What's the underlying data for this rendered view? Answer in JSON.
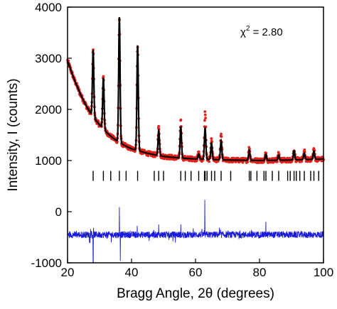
{
  "chart_data": {
    "type": "scatter",
    "title": "",
    "xlabel": "Bragg Angle, 2θ (degrees)",
    "ylabel": "Intensity, I (counts)",
    "xlim": [
      20,
      100
    ],
    "ylim": [
      -1000,
      4000
    ],
    "x_ticks": [
      20,
      40,
      60,
      80,
      100
    ],
    "y_ticks": [
      -1000,
      0,
      1000,
      2000,
      3000,
      4000
    ],
    "grid": false,
    "legend": "none",
    "annotation": {
      "text": "χ² = 2.80",
      "chi_symbol": "χ",
      "superscript": "2",
      "value_text": " = 2.80"
    },
    "background_curve": [
      [
        20,
        2950
      ],
      [
        22,
        2600
      ],
      [
        24,
        2300
      ],
      [
        26,
        2050
      ],
      [
        28,
        1850
      ],
      [
        30,
        1700
      ],
      [
        32,
        1560
      ],
      [
        34,
        1450
      ],
      [
        36,
        1360
      ],
      [
        38,
        1290
      ],
      [
        40,
        1230
      ],
      [
        45,
        1140
      ],
      [
        50,
        1080
      ],
      [
        55,
        1050
      ],
      [
        60,
        1030
      ],
      [
        65,
        1020
      ],
      [
        70,
        1010
      ],
      [
        80,
        1000
      ],
      [
        90,
        1010
      ],
      [
        100,
        1030
      ]
    ],
    "peaks": [
      {
        "x": 28.0,
        "height": 1310,
        "obs_extra": 0
      },
      {
        "x": 31.2,
        "height": 1000,
        "obs_extra": 40
      },
      {
        "x": 36.2,
        "height": 2450,
        "obs_extra": 0
      },
      {
        "x": 41.9,
        "height": 2050,
        "obs_extra": 0
      },
      {
        "x": 48.5,
        "height": 500,
        "obs_extra": 60
      },
      {
        "x": 55.4,
        "height": 620,
        "obs_extra": 120
      },
      {
        "x": 61.0,
        "height": 100,
        "obs_extra": 20
      },
      {
        "x": 63.0,
        "height": 620,
        "obs_extra": 300
      },
      {
        "x": 65.0,
        "height": 320,
        "obs_extra": 60
      },
      {
        "x": 68.0,
        "height": 380,
        "obs_extra": 90
      },
      {
        "x": 76.8,
        "height": 200,
        "obs_extra": 40
      },
      {
        "x": 82.0,
        "height": 120,
        "obs_extra": 30
      },
      {
        "x": 86.0,
        "height": 100,
        "obs_extra": 20
      },
      {
        "x": 90.8,
        "height": 180,
        "obs_extra": 30
      },
      {
        "x": 94.0,
        "height": 130,
        "obs_extra": 30
      },
      {
        "x": 97.0,
        "height": 160,
        "obs_extra": 40
      }
    ],
    "reflection_markers": [
      28.0,
      31.2,
      33.5,
      36.2,
      38.3,
      41.9,
      47.1,
      48.5,
      50.0,
      55.4,
      56.8,
      58.6,
      61.0,
      62.8,
      63.0,
      63.6,
      65.0,
      66.0,
      68.0,
      71.0,
      76.8,
      77.3,
      79.2,
      81.4,
      82.0,
      84.0,
      86.0,
      88.8,
      89.6,
      90.8,
      91.5,
      92.6,
      94.0,
      96.0,
      97.0,
      98.5
    ],
    "reflection_marker_level": 700,
    "difference_baseline": -450,
    "difference_spikes": [
      {
        "x": 28.0,
        "value": -1000
      },
      {
        "x": 36.2,
        "value": 90
      },
      {
        "x": 36.5,
        "value": -960
      },
      {
        "x": 62.9,
        "value": 230
      },
      {
        "x": 82.0,
        "value": -200
      },
      {
        "x": 48.5,
        "value": -250
      },
      {
        "x": 55.4,
        "value": -250
      }
    ],
    "series": [
      {
        "color": "#e3201b",
        "marker": "circle"
      },
      {
        "color": "#000000",
        "marker": "line"
      },
      {
        "color": "#000000",
        "marker": "tick"
      },
      {
        "color": "#1a1adc",
        "marker": "line"
      }
    ]
  }
}
